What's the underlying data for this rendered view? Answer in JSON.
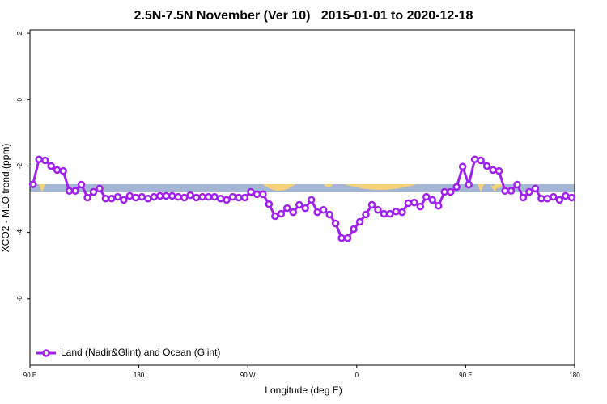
{
  "chart_data": {
    "type": "line",
    "title": "2.5N-7.5N November (Ver 10)   2015-01-01 to 2020-12-18",
    "xlabel": "Longitude (deg E)",
    "ylabel": "XCO2 - MLO trend (ppm)",
    "xlim": [
      90,
      540
    ],
    "ylim": [
      -8,
      2.1
    ],
    "xticks": [
      {
        "value": 90,
        "label": "90 E"
      },
      180,
      {
        "value": 270,
        "label": "90 W"
      },
      {
        "value": 360,
        "label": "0"
      },
      {
        "value": 450,
        "label": "90 E"
      },
      {
        "value": 540,
        "label": "180"
      }
    ],
    "yticks": [
      2,
      0,
      -2,
      -4,
      -6
    ],
    "legend": "bottom-left",
    "x": [
      92.5,
      97.5,
      102.5,
      107.5,
      112.5,
      117.5,
      122.5,
      127.5,
      132.5,
      137.5,
      142.5,
      147.5,
      152.5,
      157.5,
      162.5,
      167.5,
      172.5,
      177.5,
      182.5,
      187.5,
      192.5,
      197.5,
      202.5,
      207.5,
      212.5,
      217.5,
      222.5,
      227.5,
      232.5,
      237.5,
      242.5,
      247.5,
      252.5,
      257.5,
      262.5,
      267.5,
      272.5,
      277.5,
      282.5,
      287.5,
      292.5,
      297.5,
      302.5,
      307.5,
      312.5,
      317.5,
      322.5,
      327.5,
      332.5,
      337.5,
      342.5,
      347.5,
      352.5,
      357.5,
      362.5,
      367.5,
      372.5,
      377.5,
      382.5,
      387.5,
      392.5,
      397.5,
      402.5,
      407.5,
      412.5,
      417.5,
      422.5,
      427.5,
      432.5,
      437.5,
      442.5,
      447.5,
      452.5,
      457.5,
      462.5,
      467.5,
      472.5,
      477.5,
      482.5,
      487.5,
      492.5,
      497.5,
      502.5,
      507.5,
      512.5,
      517.5,
      522.5,
      527.5,
      532.5,
      537.5
    ],
    "series": [
      {
        "name": "Land (Nadir&Glint) and Ocean (Glint)",
        "color": "#a020f0",
        "values": [
          -2.55,
          -1.8,
          -1.83,
          -2.0,
          -2.12,
          -2.15,
          -2.75,
          -2.75,
          -2.56,
          -2.95,
          -2.78,
          -2.68,
          -2.98,
          -2.98,
          -2.93,
          -3.02,
          -2.9,
          -2.95,
          -2.93,
          -2.98,
          -2.93,
          -2.9,
          -2.9,
          -2.9,
          -2.93,
          -2.95,
          -2.88,
          -2.95,
          -2.93,
          -2.93,
          -2.93,
          -2.98,
          -3.02,
          -2.93,
          -2.95,
          -2.95,
          -2.78,
          -2.85,
          -2.85,
          -3.15,
          -3.51,
          -3.44,
          -3.27,
          -3.39,
          -3.17,
          -3.27,
          -3.02,
          -3.39,
          -3.32,
          -3.46,
          -3.73,
          -4.17,
          -4.17,
          -3.9,
          -3.68,
          -3.46,
          -3.17,
          -3.32,
          -3.44,
          -3.44,
          -3.37,
          -3.39,
          -3.12,
          -3.1,
          -3.22,
          -2.93,
          -3.02,
          -3.2,
          -2.78,
          -2.78,
          -2.63,
          -2.02,
          -2.56,
          -1.8,
          -1.83,
          -2.0,
          -2.12,
          -2.15,
          -2.75,
          -2.75,
          -2.56,
          -2.95,
          -2.78,
          -2.68,
          -2.98,
          -2.98,
          -2.93,
          -3.02,
          -2.9,
          -2.95
        ]
      }
    ]
  }
}
